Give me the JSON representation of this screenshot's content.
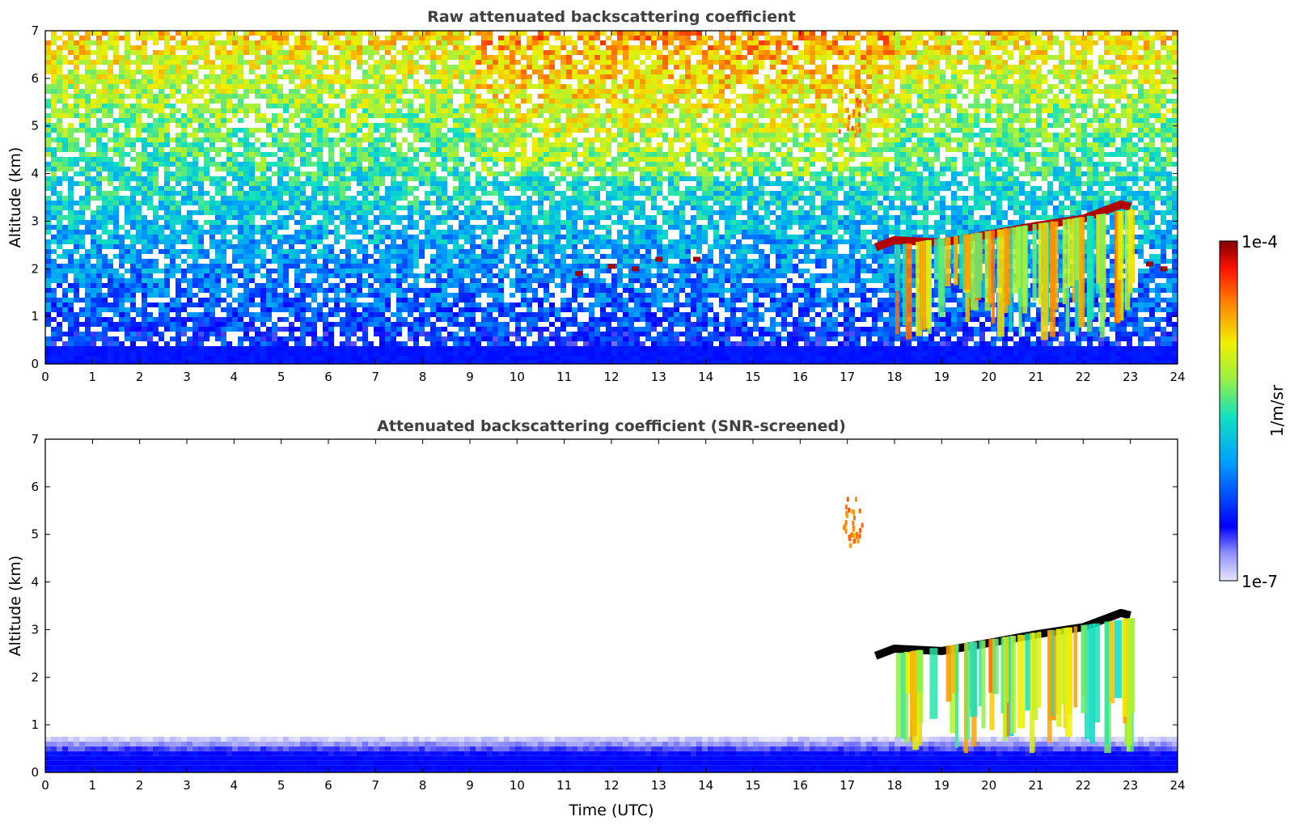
{
  "chart_data": [
    {
      "type": "heatmap",
      "title": "Raw attenuated backscattering coefficient",
      "xlabel": "",
      "ylabel": "Altitude (km)",
      "xlim": [
        0,
        24
      ],
      "ylim": [
        0,
        7
      ],
      "x_ticks": [
        "0",
        "1",
        "2",
        "3",
        "4",
        "5",
        "6",
        "7",
        "8",
        "9",
        "10",
        "11",
        "12",
        "13",
        "14",
        "15",
        "16",
        "17",
        "18",
        "19",
        "20",
        "21",
        "22",
        "23",
        "24"
      ],
      "y_ticks": [
        "0",
        "1",
        "2",
        "3",
        "4",
        "5",
        "6",
        "7"
      ],
      "features": [
        {
          "kind": "surface_layer",
          "x_range": [
            0,
            24
          ],
          "alt_km": [
            0,
            0.4
          ],
          "level": "low"
        },
        {
          "kind": "noise_field",
          "x_range": [
            0,
            24
          ],
          "alt_km": [
            0.4,
            7
          ],
          "level": "increasing with altitude"
        },
        {
          "kind": "cloud_top",
          "x_km": [
            [
              17.6,
              2.45
            ],
            [
              18,
              2.6
            ],
            [
              19,
              2.55
            ],
            [
              20,
              2.72
            ],
            [
              21,
              2.9
            ],
            [
              22,
              3.05
            ],
            [
              22.8,
              3.35
            ],
            [
              23.0,
              3.3
            ]
          ],
          "level": "max"
        },
        {
          "kind": "precipitation",
          "x_range": [
            18,
            23
          ],
          "alt_km": [
            0.5,
            3.0
          ],
          "level": "mixed"
        },
        {
          "kind": "cloud_fragments",
          "x_km": [
            [
              11.3,
              1.9
            ],
            [
              12,
              2.05
            ],
            [
              12.5,
              2.0
            ],
            [
              13,
              2.2
            ],
            [
              13.8,
              2.2
            ],
            [
              23.4,
              2.1
            ],
            [
              23.7,
              2.0
            ]
          ],
          "level": "high"
        },
        {
          "kind": "high_cloud",
          "x_range": [
            16.8,
            17.4
          ],
          "alt_km": [
            4.8,
            5.8
          ],
          "level": "medium-high"
        }
      ]
    },
    {
      "type": "heatmap",
      "title": "Attenuated backscattering coefficient (SNR-screened)",
      "xlabel": "Time (UTC)",
      "ylabel": "Altitude (km)",
      "xlim": [
        0,
        24
      ],
      "ylim": [
        0,
        7
      ],
      "x_ticks": [
        "0",
        "1",
        "2",
        "3",
        "4",
        "5",
        "6",
        "7",
        "8",
        "9",
        "10",
        "11",
        "12",
        "13",
        "14",
        "15",
        "16",
        "17",
        "18",
        "19",
        "20",
        "21",
        "22",
        "23",
        "24"
      ],
      "y_ticks": [
        "0",
        "1",
        "2",
        "3",
        "4",
        "5",
        "6",
        "7"
      ],
      "features": [
        {
          "kind": "surface_layer",
          "x_range": [
            0,
            24
          ],
          "alt_km": [
            0,
            0.6
          ],
          "level": "low"
        },
        {
          "kind": "cloud_top",
          "x_km": [
            [
              17.6,
              2.45
            ],
            [
              18,
              2.6
            ],
            [
              19,
              2.55
            ],
            [
              20,
              2.72
            ],
            [
              21,
              2.9
            ],
            [
              22,
              3.05
            ],
            [
              22.8,
              3.35
            ],
            [
              23.0,
              3.3
            ]
          ],
          "level": "saturated"
        },
        {
          "kind": "precipitation",
          "x_range": [
            18,
            23
          ],
          "alt_km": [
            0.4,
            3.0
          ],
          "level": "mixed"
        },
        {
          "kind": "high_cloud",
          "x_range": [
            16.9,
            17.3
          ],
          "alt_km": [
            4.8,
            5.8
          ],
          "level": "medium-high"
        }
      ]
    }
  ],
  "colorbar": {
    "label": "1/m/sr",
    "max_label": "1e-4",
    "min_label": "1e-7",
    "scale": "log",
    "range": [
      1e-07,
      0.0001
    ],
    "colormap": "jet with light-blue low end"
  },
  "colors": {
    "title": "#404040",
    "surface_blue": "#1a1aff",
    "saturated": "#000000"
  }
}
